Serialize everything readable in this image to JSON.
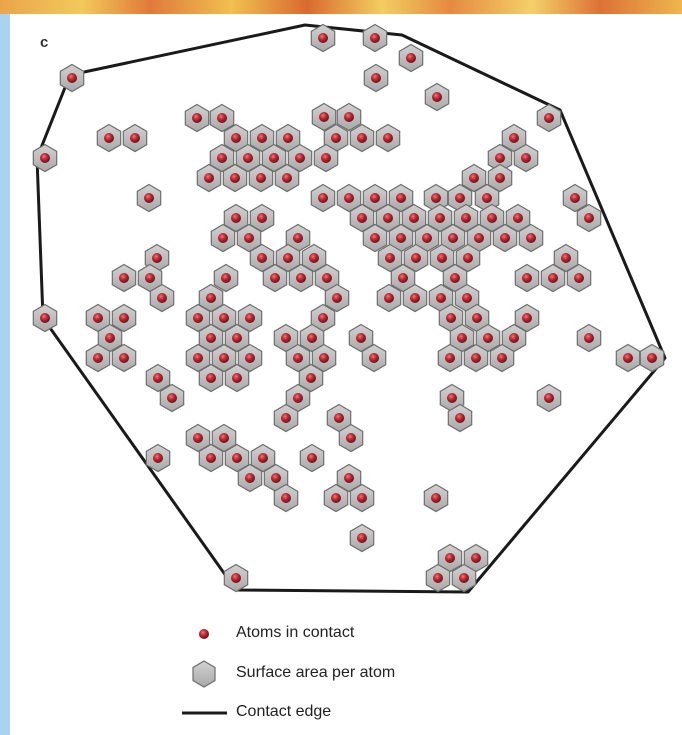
{
  "panel_label": "c",
  "legend": {
    "atoms": "Atoms in contact",
    "surface": "Surface area per atom",
    "edge": "Contact edge"
  },
  "colors": {
    "hexagon_fill": "#bdbdbd",
    "hexagon_stroke": "#6e6e6e",
    "atom": "#b0202c",
    "edge": "#1a1a1a",
    "left_bar": "#a9d3f2"
  }
}
